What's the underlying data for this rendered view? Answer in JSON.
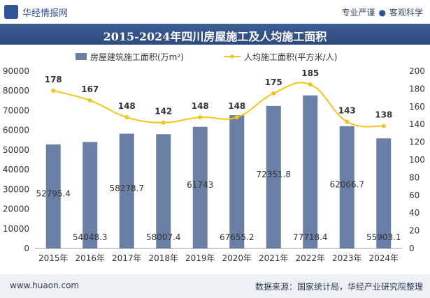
{
  "header": {
    "logo_text": "华经情报网",
    "tagline_left": "专业严谨",
    "tagline_right": "客观科学"
  },
  "footer": {
    "url": "www.huaon.com",
    "source": "数据来源：国家统计局，华经产业研究院整理"
  },
  "colors": {
    "bar": "#6a7fa6",
    "line": "#f5c518",
    "title_bg": "#36548a"
  },
  "chart_data": {
    "type": "bar",
    "title": "2015-2024年四川房屋施工及人均施工面积",
    "categories": [
      "2015年",
      "2016年",
      "2017年",
      "2018年",
      "2019年",
      "2020年",
      "2021年",
      "2022年",
      "2023年",
      "2024年"
    ],
    "series": [
      {
        "name": "房屋建筑施工面积(万m²)",
        "type": "bar",
        "axis": "left",
        "values": [
          52795.4,
          54048.3,
          58278.7,
          58007.4,
          61743,
          67655.2,
          72351.8,
          77718.4,
          62066.7,
          55903.1
        ],
        "labels": [
          "52795.4",
          "54048.3",
          "58278.7",
          "58007.4",
          "61743",
          "67655.2",
          "72351.8",
          "77718.4",
          "62066.7",
          "55903.1"
        ]
      },
      {
        "name": "人均施工面积(平方米/人)",
        "type": "line",
        "axis": "right",
        "values": [
          178,
          167,
          148,
          142,
          148,
          148,
          175,
          185,
          143,
          138
        ],
        "labels": [
          "178",
          "167",
          "148",
          "142",
          "148",
          "148",
          "175",
          "185",
          "143",
          "138"
        ]
      }
    ],
    "left_axis": {
      "min": 0,
      "max": 90000,
      "ticks": [
        "0",
        "10000",
        "20000",
        "30000",
        "40000",
        "50000",
        "60000",
        "70000",
        "80000",
        "90000"
      ]
    },
    "right_axis": {
      "min": 0,
      "max": 200,
      "ticks": [
        "0",
        "20",
        "40",
        "60",
        "80",
        "100",
        "120",
        "140",
        "160",
        "180",
        "200"
      ]
    },
    "legend_position": "top-center"
  }
}
